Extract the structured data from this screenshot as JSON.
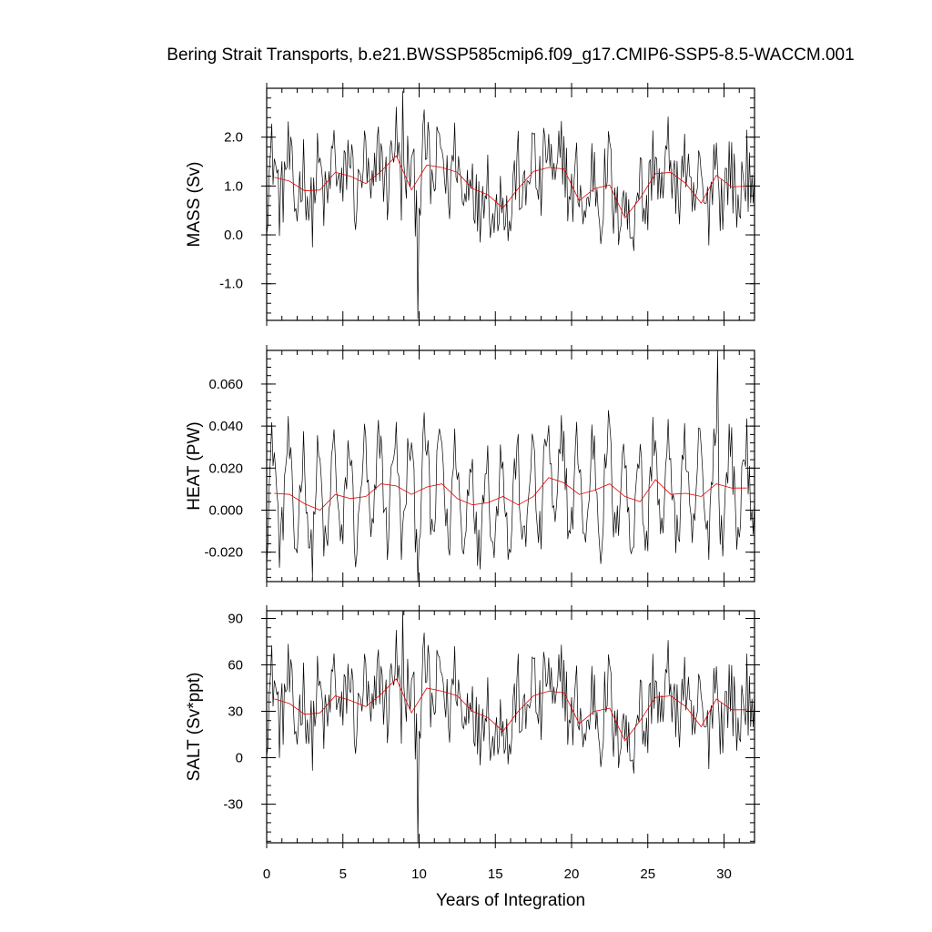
{
  "chart_data": {
    "type": "line",
    "title": "Bering Strait Transports, b.e21.BWSSP585cmip6.f09_g17.CMIP6-SSP5-8.5-WACCM.001",
    "xlabel": "Years of Integration",
    "xlim": [
      0,
      32
    ],
    "x_ticks": [
      0,
      5,
      10,
      15,
      20,
      25,
      30
    ],
    "x_tick_labels": [
      "0",
      "5",
      "10",
      "15",
      "20",
      "25",
      "30"
    ],
    "legend": "none",
    "grid": false,
    "colors": {
      "monthly": "#000000",
      "annual": "#e60000"
    },
    "panels": [
      {
        "ylabel": "MASS (Sv)",
        "ylim": [
          -1.75,
          3.0
        ],
        "y_ticks": [
          -1.0,
          0.0,
          1.0,
          2.0
        ],
        "y_tick_labels": [
          "-1.0",
          "0.0",
          "1.0",
          "2.0"
        ],
        "annual": {
          "x": [
            0.5,
            1.5,
            2.5,
            3.5,
            4.5,
            5.5,
            6.5,
            7.5,
            8.5,
            9.5,
            10.5,
            11.5,
            12.5,
            13.5,
            14.5,
            15.5,
            16.5,
            17.5,
            18.5,
            19.5,
            20.5,
            21.5,
            22.5,
            23.5,
            24.5,
            25.5,
            26.5,
            27.5,
            28.5,
            29.5,
            30.5,
            31.5
          ],
          "y": [
            1.18,
            1.1,
            0.9,
            0.92,
            1.28,
            1.2,
            1.05,
            1.3,
            1.62,
            0.92,
            1.43,
            1.38,
            1.28,
            0.95,
            0.82,
            0.55,
            0.95,
            1.3,
            1.38,
            1.35,
            0.7,
            0.95,
            1.02,
            0.35,
            0.75,
            1.25,
            1.28,
            1.05,
            0.65,
            1.22,
            0.98,
            1.0
          ]
        },
        "monthly_extremes": {
          "max": 2.95,
          "max_year": 8.9,
          "min": -1.72,
          "min_year": 9.95
        }
      },
      {
        "ylabel": "HEAT (PW)",
        "ylim": [
          -0.034,
          0.076
        ],
        "y_ticks": [
          -0.02,
          0.0,
          0.02,
          0.04,
          0.06
        ],
        "y_tick_labels": [
          "-0.020",
          "0.000",
          "0.020",
          "0.040",
          "0.060"
        ],
        "annual": {
          "x": [
            0.5,
            1.5,
            2.5,
            3.5,
            4.5,
            5.5,
            6.5,
            7.5,
            8.5,
            9.5,
            10.5,
            11.5,
            12.5,
            13.5,
            14.5,
            15.5,
            16.5,
            17.5,
            18.5,
            19.5,
            20.5,
            21.5,
            22.5,
            23.5,
            24.5,
            25.5,
            26.5,
            27.5,
            28.5,
            29.5,
            30.5,
            31.5
          ],
          "y": [
            0.008,
            0.0075,
            0.003,
            0.0,
            0.0075,
            0.0055,
            0.0065,
            0.0125,
            0.0115,
            0.0075,
            0.011,
            0.0125,
            0.0055,
            0.0025,
            0.0035,
            0.0065,
            0.0025,
            0.0065,
            0.0155,
            0.013,
            0.0075,
            0.0095,
            0.0125,
            0.0065,
            0.004,
            0.0145,
            0.0075,
            0.008,
            0.0065,
            0.0125,
            0.0105,
            0.0105
          ]
        },
        "monthly_extremes": {
          "max": 0.076,
          "max_year": 29.6,
          "min": -0.034,
          "min_year": 9.95
        }
      },
      {
        "ylabel": "SALT (Sv*ppt)",
        "ylim": [
          -55,
          95
        ],
        "y_ticks": [
          -30,
          0,
          30,
          60,
          90
        ],
        "y_tick_labels": [
          "-30",
          "0",
          "30",
          "60",
          "90"
        ],
        "annual": {
          "x": [
            0.5,
            1.5,
            2.5,
            3.5,
            4.5,
            5.5,
            6.5,
            7.5,
            8.5,
            9.5,
            10.5,
            11.5,
            12.5,
            13.5,
            14.5,
            15.5,
            16.5,
            17.5,
            18.5,
            19.5,
            20.5,
            21.5,
            22.5,
            23.5,
            24.5,
            25.5,
            26.5,
            27.5,
            28.5,
            29.5,
            30.5,
            31.5
          ],
          "y": [
            38,
            35,
            28,
            29,
            40,
            37,
            33,
            41,
            51,
            29,
            45,
            43,
            40,
            30,
            26,
            17,
            30,
            40,
            43,
            42,
            22,
            30,
            32,
            11,
            24,
            39,
            40,
            33,
            20,
            38,
            31,
            31
          ]
        },
        "monthly_extremes": {
          "max": 95,
          "max_year": 8.9,
          "min": -55,
          "min_year": 9.95
        }
      }
    ]
  }
}
